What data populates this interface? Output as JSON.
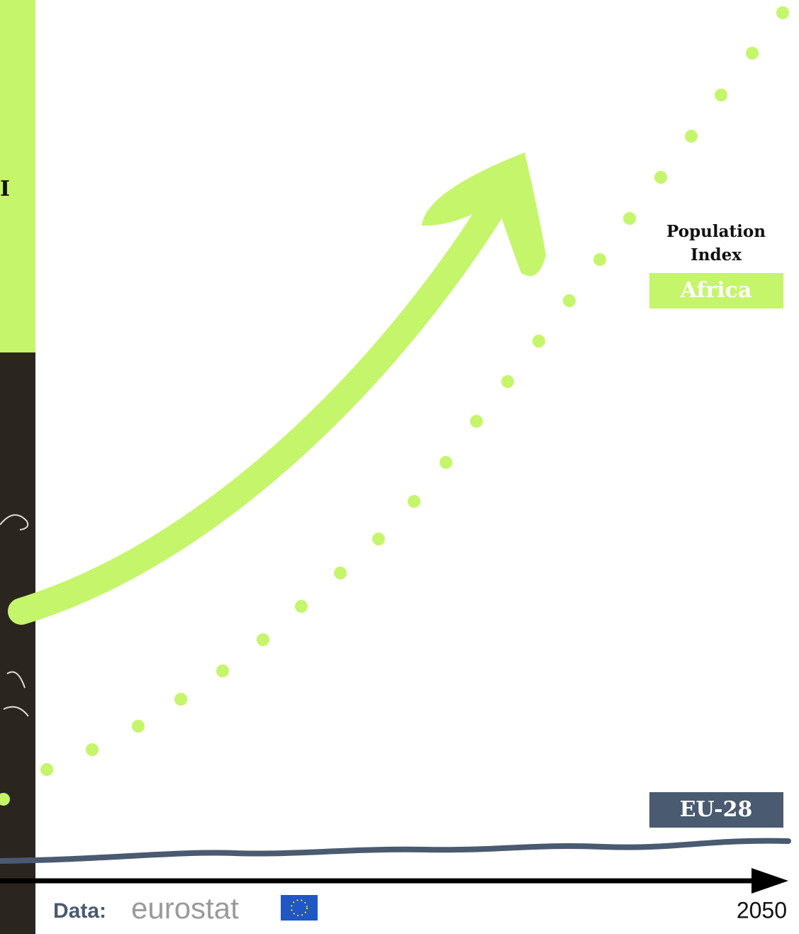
{
  "side_panel": {
    "text": "I"
  },
  "africa_label": {
    "title_line1": "Population",
    "title_line2": "Index",
    "region": "Africa"
  },
  "eu_label": {
    "region": "EU-28"
  },
  "footer": {
    "source_prefix": "Data:",
    "source": "eurostat",
    "axis_end": "2050"
  }
}
